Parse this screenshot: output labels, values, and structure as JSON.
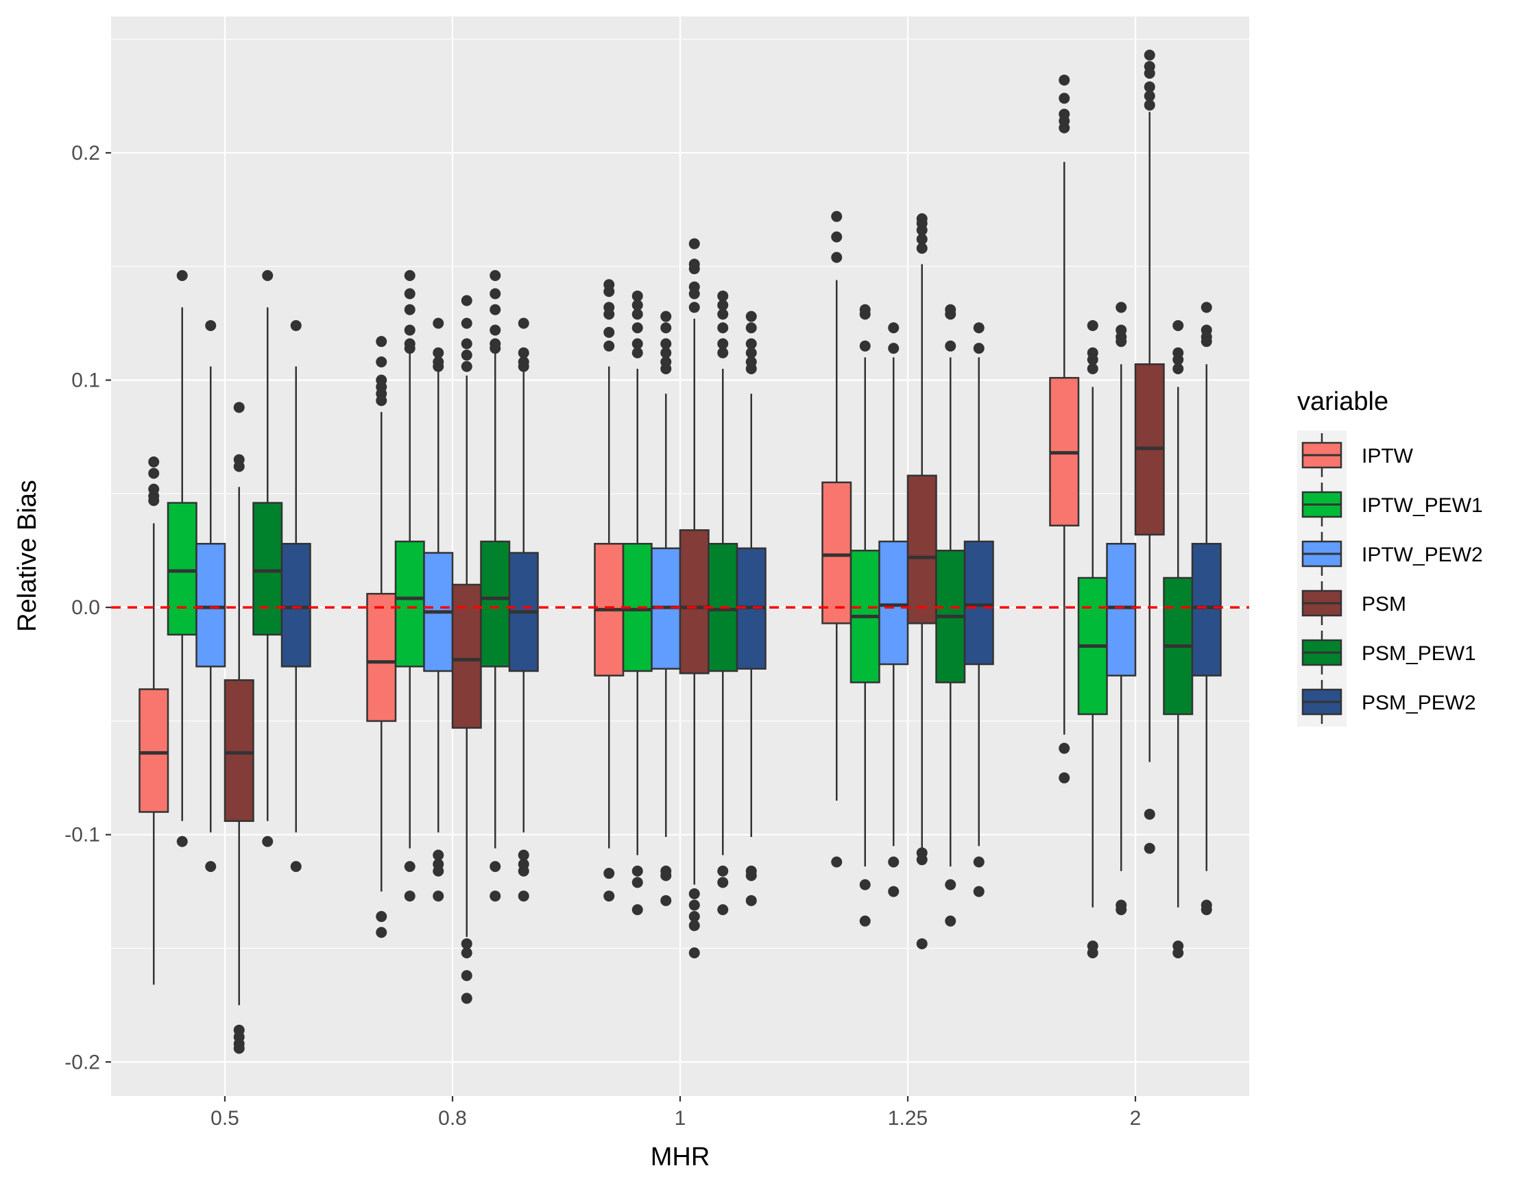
{
  "chart_data": {
    "type": "box",
    "xlabel": "MHR",
    "ylabel": "Relative Bias",
    "categories": [
      "0.5",
      "0.8",
      "1",
      "1.25",
      "2"
    ],
    "ylim": [
      -0.215,
      0.26
    ],
    "yticks": [
      -0.2,
      -0.1,
      0.0,
      0.1,
      0.2
    ],
    "ytick_labels": [
      "-0.2",
      "-0.1",
      "0.0",
      "0.1",
      "0.2"
    ],
    "reference_line": {
      "y": 0.0,
      "color": "#ff0000",
      "style": "dashed"
    },
    "grid": true,
    "legend": {
      "title": "variable",
      "position": "right"
    },
    "series": [
      {
        "name": "IPTW",
        "color": "#f8766d",
        "boxes": [
          {
            "whisker_low": -0.166,
            "q1": -0.09,
            "median": -0.064,
            "q3": -0.036,
            "whisker_high": 0.037,
            "outliers": [
              0.047,
              0.049,
              0.052,
              0.059,
              0.064
            ]
          },
          {
            "whisker_low": -0.125,
            "q1": -0.05,
            "median": -0.024,
            "q3": 0.006,
            "whisker_high": 0.086,
            "outliers": [
              -0.143,
              -0.136,
              0.091,
              0.094,
              0.097,
              0.1,
              0.108,
              0.117
            ]
          },
          {
            "whisker_low": -0.106,
            "q1": -0.03,
            "median": -0.001,
            "q3": 0.028,
            "whisker_high": 0.106,
            "outliers": [
              -0.127,
              -0.117,
              0.115,
              0.121,
              0.129,
              0.132,
              0.139,
              0.142
            ]
          },
          {
            "whisker_low": -0.085,
            "q1": -0.007,
            "median": 0.023,
            "q3": 0.055,
            "whisker_high": 0.144,
            "outliers": [
              -0.112,
              0.154,
              0.163,
              0.172
            ]
          },
          {
            "whisker_low": -0.056,
            "q1": 0.036,
            "median": 0.068,
            "q3": 0.101,
            "whisker_high": 0.196,
            "outliers": [
              -0.075,
              -0.062,
              0.211,
              0.214,
              0.217,
              0.224,
              0.232
            ]
          }
        ]
      },
      {
        "name": "IPTW_PEW1",
        "color": "#00ba38",
        "boxes": [
          {
            "whisker_low": -0.094,
            "q1": -0.012,
            "median": 0.016,
            "q3": 0.046,
            "whisker_high": 0.132,
            "outliers": [
              -0.103,
              0.146
            ]
          },
          {
            "whisker_low": -0.106,
            "q1": -0.026,
            "median": 0.004,
            "q3": 0.029,
            "whisker_high": 0.113,
            "outliers": [
              -0.127,
              -0.114,
              0.114,
              0.116,
              0.122,
              0.131,
              0.138,
              0.146
            ]
          },
          {
            "whisker_low": -0.109,
            "q1": -0.028,
            "median": -0.001,
            "q3": 0.028,
            "whisker_high": 0.105,
            "outliers": [
              -0.133,
              -0.121,
              -0.116,
              0.112,
              0.116,
              0.123,
              0.129,
              0.133,
              0.137
            ]
          },
          {
            "whisker_low": -0.114,
            "q1": -0.033,
            "median": -0.004,
            "q3": 0.025,
            "whisker_high": 0.11,
            "outliers": [
              -0.138,
              -0.122,
              0.115,
              0.129,
              0.131
            ]
          },
          {
            "whisker_low": -0.132,
            "q1": -0.047,
            "median": -0.017,
            "q3": 0.013,
            "whisker_high": 0.097,
            "outliers": [
              -0.152,
              -0.149,
              0.105,
              0.109,
              0.112,
              0.124
            ]
          }
        ]
      },
      {
        "name": "IPTW_PEW2",
        "color": "#619cff",
        "boxes": [
          {
            "whisker_low": -0.099,
            "q1": -0.026,
            "median": 0.0,
            "q3": 0.028,
            "whisker_high": 0.106,
            "outliers": [
              -0.114,
              0.124
            ]
          },
          {
            "whisker_low": -0.099,
            "q1": -0.028,
            "median": -0.002,
            "q3": 0.024,
            "whisker_high": 0.104,
            "outliers": [
              -0.127,
              -0.116,
              -0.113,
              -0.109,
              0.106,
              0.108,
              0.112,
              0.125
            ]
          },
          {
            "whisker_low": -0.101,
            "q1": -0.027,
            "median": 0.0,
            "q3": 0.026,
            "whisker_high": 0.094,
            "outliers": [
              -0.129,
              -0.118,
              -0.116,
              0.105,
              0.108,
              0.112,
              0.116,
              0.123,
              0.128
            ]
          },
          {
            "whisker_low": -0.105,
            "q1": -0.025,
            "median": 0.001,
            "q3": 0.029,
            "whisker_high": 0.11,
            "outliers": [
              -0.125,
              -0.112,
              0.114,
              0.123
            ]
          },
          {
            "whisker_low": -0.116,
            "q1": -0.03,
            "median": 0.0,
            "q3": 0.028,
            "whisker_high": 0.107,
            "outliers": [
              -0.133,
              -0.131,
              0.117,
              0.119,
              0.122,
              0.132
            ]
          }
        ]
      },
      {
        "name": "PSM",
        "color": "#833c38",
        "boxes": [
          {
            "whisker_low": -0.175,
            "q1": -0.094,
            "median": -0.064,
            "q3": -0.032,
            "whisker_high": 0.053,
            "outliers": [
              -0.194,
              -0.192,
              -0.189,
              -0.186,
              0.062,
              0.065,
              0.088
            ]
          },
          {
            "whisker_low": -0.145,
            "q1": -0.053,
            "median": -0.023,
            "q3": 0.01,
            "whisker_high": 0.102,
            "outliers": [
              -0.172,
              -0.162,
              -0.152,
              -0.148,
              0.106,
              0.111,
              0.116,
              0.125,
              0.135
            ]
          },
          {
            "whisker_low": -0.122,
            "q1": -0.029,
            "median": 0.0,
            "q3": 0.034,
            "whisker_high": 0.127,
            "outliers": [
              -0.152,
              -0.14,
              -0.136,
              -0.131,
              -0.126,
              0.132,
              0.138,
              0.141,
              0.149,
              0.151,
              0.16
            ]
          },
          {
            "whisker_low": -0.106,
            "q1": -0.007,
            "median": 0.022,
            "q3": 0.058,
            "whisker_high": 0.151,
            "outliers": [
              -0.148,
              -0.111,
              -0.108,
              0.158,
              0.162,
              0.166,
              0.169,
              0.171
            ]
          },
          {
            "whisker_low": -0.068,
            "q1": 0.032,
            "median": 0.07,
            "q3": 0.107,
            "whisker_high": 0.218,
            "outliers": [
              -0.106,
              -0.091,
              0.221,
              0.225,
              0.229,
              0.235,
              0.238,
              0.243
            ]
          }
        ]
      },
      {
        "name": "PSM_PEW1",
        "color": "#00822c",
        "boxes": [
          {
            "whisker_low": -0.094,
            "q1": -0.012,
            "median": 0.016,
            "q3": 0.046,
            "whisker_high": 0.132,
            "outliers": [
              -0.103,
              0.146
            ]
          },
          {
            "whisker_low": -0.106,
            "q1": -0.026,
            "median": 0.004,
            "q3": 0.029,
            "whisker_high": 0.113,
            "outliers": [
              -0.127,
              -0.114,
              0.114,
              0.116,
              0.122,
              0.131,
              0.138,
              0.146
            ]
          },
          {
            "whisker_low": -0.109,
            "q1": -0.028,
            "median": -0.001,
            "q3": 0.028,
            "whisker_high": 0.105,
            "outliers": [
              -0.133,
              -0.121,
              -0.116,
              0.112,
              0.116,
              0.123,
              0.129,
              0.133,
              0.137
            ]
          },
          {
            "whisker_low": -0.114,
            "q1": -0.033,
            "median": -0.004,
            "q3": 0.025,
            "whisker_high": 0.11,
            "outliers": [
              -0.138,
              -0.122,
              0.115,
              0.129,
              0.131
            ]
          },
          {
            "whisker_low": -0.132,
            "q1": -0.047,
            "median": -0.017,
            "q3": 0.013,
            "whisker_high": 0.097,
            "outliers": [
              -0.152,
              -0.149,
              0.105,
              0.109,
              0.112,
              0.124
            ]
          }
        ]
      },
      {
        "name": "PSM_PEW2",
        "color": "#2b4f89",
        "boxes": [
          {
            "whisker_low": -0.099,
            "q1": -0.026,
            "median": 0.0,
            "q3": 0.028,
            "whisker_high": 0.106,
            "outliers": [
              -0.114,
              0.124
            ]
          },
          {
            "whisker_low": -0.099,
            "q1": -0.028,
            "median": -0.002,
            "q3": 0.024,
            "whisker_high": 0.104,
            "outliers": [
              -0.127,
              -0.116,
              -0.113,
              -0.109,
              0.106,
              0.108,
              0.112,
              0.125
            ]
          },
          {
            "whisker_low": -0.101,
            "q1": -0.027,
            "median": 0.0,
            "q3": 0.026,
            "whisker_high": 0.094,
            "outliers": [
              -0.129,
              -0.118,
              -0.116,
              0.105,
              0.108,
              0.112,
              0.116,
              0.123,
              0.128
            ]
          },
          {
            "whisker_low": -0.105,
            "q1": -0.025,
            "median": 0.001,
            "q3": 0.029,
            "whisker_high": 0.11,
            "outliers": [
              -0.125,
              -0.112,
              0.114,
              0.123
            ]
          },
          {
            "whisker_low": -0.116,
            "q1": -0.03,
            "median": 0.0,
            "q3": 0.028,
            "whisker_high": 0.107,
            "outliers": [
              -0.133,
              -0.131,
              0.117,
              0.119,
              0.122,
              0.132
            ]
          }
        ]
      }
    ]
  }
}
